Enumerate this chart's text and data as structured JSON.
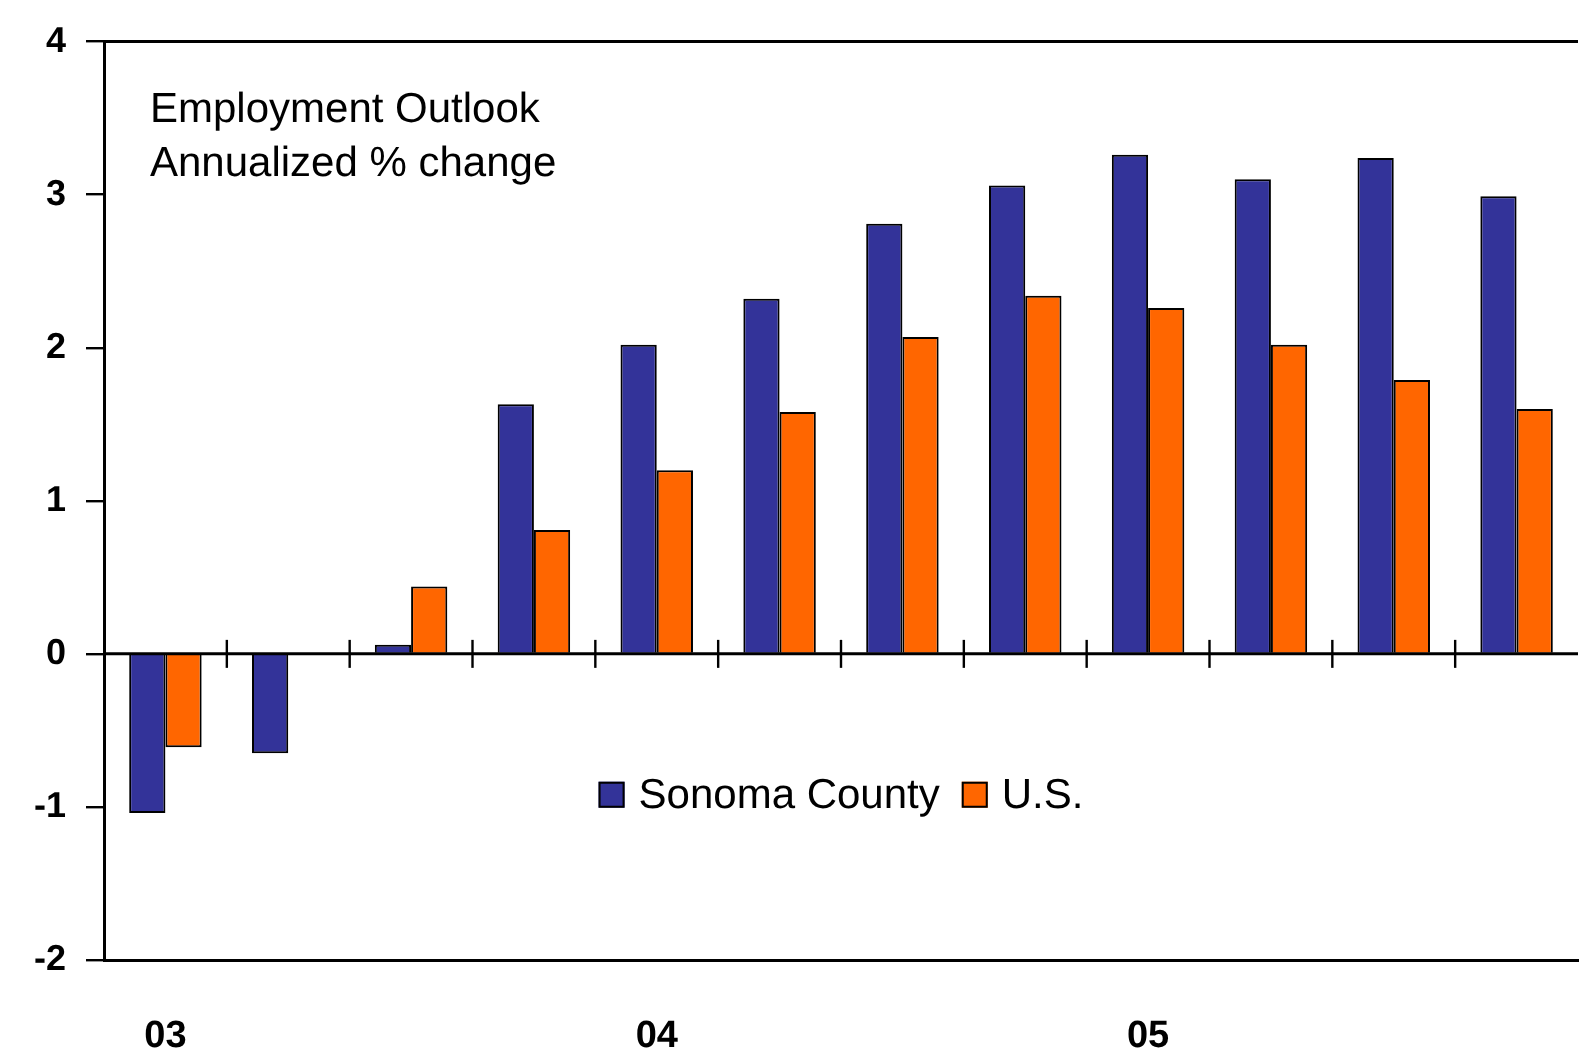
{
  "chart_data": {
    "type": "bar",
    "title": "Employment Outlook",
    "subtitle": "Annualized % change",
    "categories": [
      "03",
      null,
      null,
      null,
      "04",
      null,
      null,
      null,
      "05",
      null,
      null,
      null
    ],
    "series": [
      {
        "name": "Sonoma County",
        "color": "#333399",
        "values": [
          -1.04,
          -0.65,
          0.06,
          1.63,
          2.02,
          2.32,
          2.81,
          3.06,
          3.26,
          3.1,
          3.24,
          2.99
        ]
      },
      {
        "name": "U.S.",
        "color": "#ff6600",
        "values": [
          -0.61,
          null,
          0.44,
          0.81,
          1.2,
          1.58,
          2.07,
          2.34,
          2.26,
          2.02,
          1.79,
          1.6
        ]
      }
    ],
    "ylim": [
      -2,
      4
    ],
    "yticks": [
      -2,
      -1,
      0,
      1,
      2,
      3,
      4
    ],
    "legend": "bottom"
  }
}
